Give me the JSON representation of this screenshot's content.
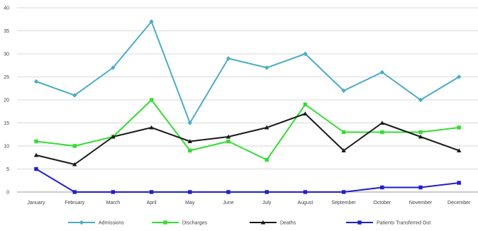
{
  "chart_data": {
    "type": "line",
    "title": "",
    "xlabel": "",
    "ylabel": "",
    "ylim": [
      0,
      40
    ],
    "yticks": [
      0,
      5,
      10,
      15,
      20,
      25,
      30,
      35,
      40
    ],
    "grid": true,
    "legend_position": "bottom",
    "categories": [
      "January",
      "February",
      "March",
      "April",
      "May",
      "June",
      "July",
      "August",
      "September",
      "October",
      "November",
      "December"
    ],
    "series": [
      {
        "name": "Admissions",
        "color": "#4bacc6",
        "marker": "diamond",
        "values": [
          24,
          21,
          27,
          37,
          15,
          29,
          27,
          30,
          22,
          26,
          20,
          25
        ]
      },
      {
        "name": "Discharges",
        "color": "#33dd33",
        "marker": "square",
        "values": [
          11,
          10,
          12,
          20,
          9,
          11,
          7,
          19,
          13,
          13,
          13,
          14
        ]
      },
      {
        "name": "Deaths",
        "color": "#1a1a1a",
        "marker": "triangle",
        "values": [
          8,
          6,
          12,
          14,
          11,
          12,
          14,
          17,
          9,
          15,
          12,
          9
        ]
      },
      {
        "name": "Patients Transferred Out",
        "color": "#1f1fcc",
        "marker": "square",
        "values": [
          5,
          0,
          0,
          0,
          0,
          0,
          0,
          0,
          0,
          1,
          1,
          2
        ]
      }
    ]
  }
}
